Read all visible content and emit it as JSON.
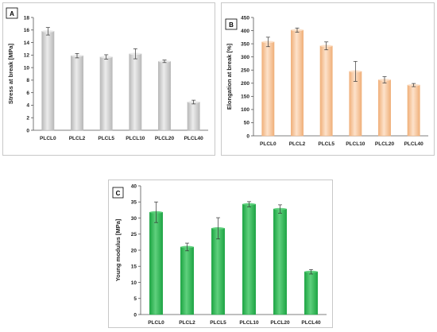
{
  "chart_data": [
    {
      "type": "bar",
      "panel_label": "A",
      "categories": [
        "PLCL0",
        "PLCL2",
        "PLCL5",
        "PLCL10",
        "PLCL20",
        "PLCL40"
      ],
      "values": [
        15.8,
        11.9,
        11.7,
        12.2,
        11.0,
        4.5
      ],
      "errors": [
        0.6,
        0.35,
        0.35,
        0.8,
        0.2,
        0.3
      ],
      "ylabel": "Stress at break [MPa]",
      "ylim": [
        0,
        18
      ],
      "yticks": [
        0,
        2,
        4,
        6,
        8,
        10,
        12,
        14,
        16,
        18
      ],
      "bar_color": "#b8b8b8",
      "bar_highlight": "#ececec",
      "grid": false
    },
    {
      "type": "bar",
      "panel_label": "B",
      "categories": [
        "PLCL0",
        "PLCL2",
        "PLCL5",
        "PLCL10",
        "PLCL20",
        "PLCL40"
      ],
      "values": [
        357,
        402,
        342,
        245,
        213,
        193
      ],
      "errors": [
        18,
        8,
        15,
        38,
        12,
        6
      ],
      "ylabel": "Elongation at break [%]",
      "ylim": [
        0,
        450
      ],
      "yticks": [
        0,
        50,
        100,
        150,
        200,
        250,
        300,
        350,
        400,
        450
      ],
      "bar_color": "#f0b07a",
      "bar_highlight": "#fde2cb",
      "grid": false
    },
    {
      "type": "bar",
      "panel_label": "C",
      "categories": [
        "PLCL0",
        "PLCL2",
        "PLCL5",
        "PLCL10",
        "PLCL20",
        "PLCL40"
      ],
      "values": [
        31.8,
        21.0,
        26.8,
        34.3,
        32.8,
        13.3
      ],
      "errors": [
        3.2,
        1.2,
        3.3,
        0.8,
        1.3,
        0.7
      ],
      "ylabel": "Young modulus [MPa]",
      "ylim": [
        0,
        40
      ],
      "yticks": [
        0,
        5,
        10,
        15,
        20,
        25,
        30,
        35,
        40
      ],
      "bar_color": "#1ea544",
      "bar_highlight": "#5fd07d",
      "grid": false
    }
  ]
}
